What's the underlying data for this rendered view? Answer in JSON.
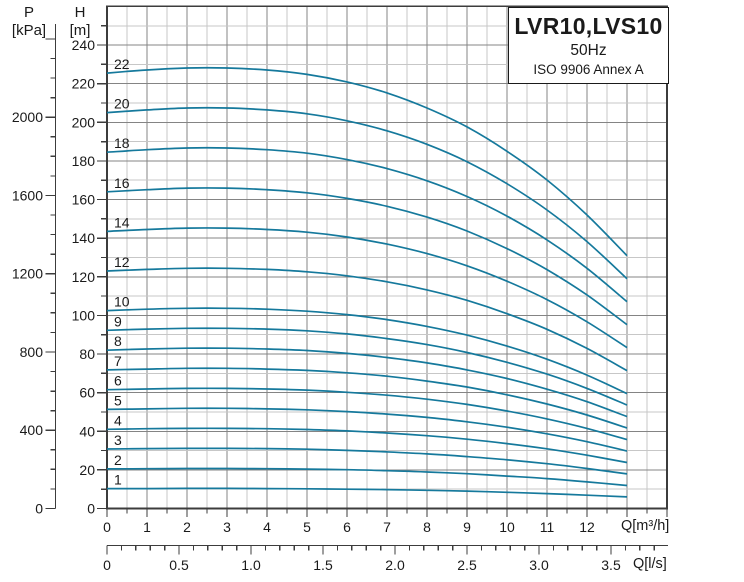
{
  "header": {
    "p_label": "P",
    "p_unit": "[kPa]",
    "h_label": "H",
    "h_unit": "[m]"
  },
  "title_box": {
    "model": "LVR10,LVS10",
    "frequency": "50Hz",
    "standard": "ISO 9906 Annex A"
  },
  "chart_data": {
    "type": "line",
    "title": "LVR10,LVS10",
    "subtitle": "50Hz",
    "note": "ISO 9906 Annex A",
    "curve_color": "#15799c",
    "grid": true,
    "x": [
      0,
      1,
      2,
      3,
      4,
      5,
      6,
      7,
      8,
      9,
      10,
      11,
      12,
      13
    ],
    "x_axis": {
      "label": "Q[m³/h]",
      "min": 0,
      "max": 14,
      "major_step": 1,
      "minor_step": 0.5,
      "labeled_ticks": [
        "0",
        "1",
        "2",
        "3",
        "4",
        "5",
        "6",
        "7",
        "8",
        "9",
        "10",
        "11",
        "12"
      ]
    },
    "x_axis_secondary": {
      "label": "Q[l/s]",
      "min": 0,
      "max": 3.89,
      "major_step": 0.5,
      "minor_step": 0.1,
      "m3h_per_ls": 3.6,
      "labeled_ticks": [
        "0",
        "0.5",
        "1.0",
        "1.5",
        "2.0",
        "2.5",
        "3.0",
        "3.5"
      ]
    },
    "y_axis": {
      "label": "H [m]",
      "min": 0,
      "max": 260,
      "major_step": 20,
      "minor_step": 10,
      "labeled_ticks": [
        "0",
        "20",
        "40",
        "60",
        "80",
        "100",
        "120",
        "140",
        "160",
        "180",
        "200",
        "220",
        "240"
      ]
    },
    "y_axis_secondary": {
      "label": "P [kPa]",
      "min": 0,
      "max": 2400,
      "major_step": 400,
      "minor_step": 100,
      "kpa_per_m": 9.87,
      "labeled_ticks": [
        "0",
        "400",
        "800",
        "1200",
        "1600",
        "2000"
      ]
    },
    "series": [
      {
        "name": "1",
        "stages": 1,
        "values": [
          10.3,
          10.3,
          10.4,
          10.4,
          10.3,
          10.2,
          10.0,
          9.8,
          9.4,
          9.0,
          8.4,
          7.7,
          6.9,
          6.0
        ]
      },
      {
        "name": "2",
        "stages": 2,
        "values": [
          20.5,
          20.6,
          20.7,
          20.7,
          20.6,
          20.4,
          20.1,
          19.6,
          18.9,
          18.0,
          16.8,
          15.5,
          13.8,
          11.9
        ]
      },
      {
        "name": "3",
        "stages": 3,
        "values": [
          30.8,
          31.0,
          31.1,
          31.1,
          31.0,
          30.7,
          30.1,
          29.3,
          28.3,
          26.9,
          25.2,
          23.2,
          20.7,
          17.9
        ]
      },
      {
        "name": "4",
        "stages": 4,
        "values": [
          41.0,
          41.3,
          41.5,
          41.5,
          41.3,
          40.9,
          40.2,
          39.1,
          37.7,
          35.9,
          33.6,
          30.9,
          27.6,
          23.8
        ]
      },
      {
        "name": "5",
        "stages": 5,
        "values": [
          51.3,
          51.6,
          51.9,
          51.9,
          51.6,
          51.1,
          50.2,
          48.9,
          47.2,
          44.9,
          42.1,
          38.7,
          34.6,
          29.8
        ]
      },
      {
        "name": "6",
        "stages": 6,
        "values": [
          61.5,
          61.9,
          62.2,
          62.2,
          61.9,
          61.3,
          60.2,
          58.7,
          56.6,
          53.9,
          50.5,
          46.4,
          41.5,
          35.7
        ]
      },
      {
        "name": "7",
        "stages": 7,
        "values": [
          71.8,
          72.2,
          72.6,
          72.6,
          72.2,
          71.5,
          70.3,
          68.5,
          66.0,
          62.9,
          58.9,
          54.1,
          48.4,
          41.7
        ]
      },
      {
        "name": "8",
        "stages": 8,
        "values": [
          82.0,
          82.6,
          83.0,
          83.0,
          82.6,
          81.8,
          80.3,
          78.2,
          75.4,
          71.8,
          67.3,
          61.8,
          55.3,
          47.6
        ]
      },
      {
        "name": "9",
        "stages": 9,
        "values": [
          92.3,
          92.9,
          93.3,
          93.3,
          92.9,
          92.0,
          90.4,
          88.0,
          84.9,
          80.8,
          75.7,
          69.6,
          62.2,
          53.6
        ]
      },
      {
        "name": "10",
        "stages": 10,
        "values": [
          102.5,
          103.2,
          103.7,
          103.7,
          103.2,
          102.2,
          100.4,
          97.8,
          94.3,
          89.8,
          84.1,
          77.3,
          69.1,
          59.5
        ]
      },
      {
        "name": "12",
        "stages": 12,
        "values": [
          123.0,
          123.8,
          124.4,
          124.4,
          123.8,
          122.6,
          120.5,
          117.4,
          113.2,
          107.8,
          100.9,
          92.8,
          82.9,
          71.4
        ]
      },
      {
        "name": "14",
        "stages": 14,
        "values": [
          143.5,
          144.5,
          145.2,
          145.2,
          144.5,
          143.1,
          140.6,
          136.9,
          132.0,
          125.7,
          117.7,
          108.2,
          96.7,
          83.3
        ]
      },
      {
        "name": "16",
        "stages": 16,
        "values": [
          164.0,
          165.1,
          165.9,
          165.9,
          165.1,
          163.5,
          160.6,
          156.5,
          150.9,
          143.7,
          134.6,
          123.7,
          110.6,
          95.2
        ]
      },
      {
        "name": "18",
        "stages": 18,
        "values": [
          184.5,
          185.8,
          186.7,
          186.7,
          185.8,
          184.0,
          180.7,
          176.0,
          169.7,
          161.6,
          151.4,
          139.1,
          124.4,
          107.1
        ]
      },
      {
        "name": "20",
        "stages": 20,
        "values": [
          205.0,
          206.4,
          207.4,
          207.4,
          206.4,
          204.4,
          200.8,
          195.6,
          188.6,
          179.6,
          168.2,
          154.6,
          138.2,
          119.0
        ]
      },
      {
        "name": "22",
        "stages": 22,
        "values": [
          225.5,
          227.1,
          228.1,
          228.1,
          227.1,
          224.8,
          220.9,
          215.2,
          207.4,
          197.6,
          185.0,
          170.1,
          152.0,
          130.9
        ]
      }
    ]
  }
}
